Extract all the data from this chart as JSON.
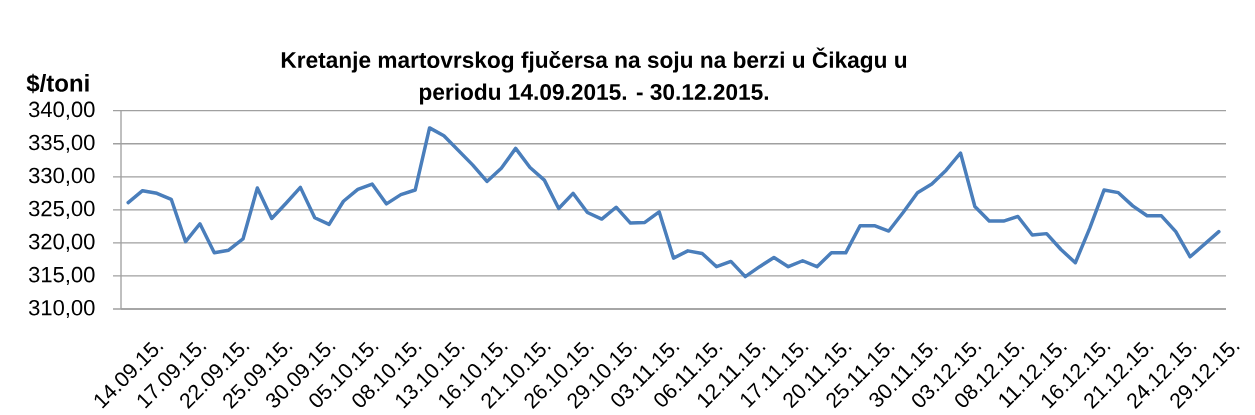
{
  "chart_data": {
    "type": "line",
    "title": "Kretanje martovrskog fjučersa na soju na berzi u Čikagu u periodu 14.09.2015. - 30.12.2015.",
    "ylabel": "$/toni",
    "categories": [
      "14.09.15.",
      null,
      null,
      "17.09.15.",
      null,
      null,
      "22.09.15.",
      null,
      null,
      "25.09.15.",
      null,
      null,
      "30.09.15.",
      null,
      null,
      "05.10.15.",
      null,
      null,
      "08.10.15.",
      null,
      null,
      "13.10.15.",
      null,
      null,
      "16.10.15.",
      null,
      null,
      "21.10.15.",
      null,
      null,
      "26.10.15.",
      null,
      null,
      "29.10.15.",
      null,
      null,
      "03.11.15.",
      null,
      null,
      "06.11.15.",
      null,
      null,
      "12.11.15.",
      null,
      null,
      "17.11.15.",
      null,
      null,
      "20.11.15.",
      null,
      null,
      "25.11.15.",
      null,
      null,
      "30.11.15.",
      null,
      null,
      "03.12.15.",
      null,
      null,
      "08.12.15.",
      null,
      null,
      "11.12.15.",
      null,
      null,
      "16.12.15.",
      null,
      null,
      "21.12.15.",
      null,
      null,
      "24.12.15.",
      null,
      null,
      "29.12.15.",
      null
    ],
    "series": [
      {
        "color": "#4a7ebb",
        "values": [
          326.1,
          327.9,
          327.5,
          326.6,
          320.2,
          322.9,
          318.5,
          318.9,
          320.6,
          328.3,
          323.7,
          326.0,
          328.4,
          323.8,
          322.8,
          326.3,
          328.1,
          328.9,
          325.9,
          327.3,
          328.0,
          337.4,
          336.2,
          334.0,
          331.8,
          329.3,
          331.3,
          334.3,
          331.4,
          329.5,
          325.2,
          327.5,
          324.6,
          323.6,
          325.4,
          323.0,
          323.1,
          324.7,
          317.7,
          318.8,
          318.4,
          316.4,
          317.2,
          314.9,
          316.4,
          317.8,
          316.4,
          317.3,
          316.4,
          318.5,
          318.5,
          322.6,
          322.6,
          321.8,
          324.6,
          327.6,
          328.9,
          331.0,
          333.6,
          325.5,
          323.3,
          323.3,
          324.0,
          321.2,
          321.4,
          319.0,
          317.0,
          322.2,
          328.0,
          327.6,
          325.6,
          324.1,
          324.1,
          321.7,
          317.9,
          319.8,
          321.7
        ]
      }
    ],
    "ylim": [
      310,
      340
    ],
    "yticks": [
      {
        "value": 310,
        "label": "310,00"
      },
      {
        "value": 315,
        "label": "315,00"
      },
      {
        "value": 320,
        "label": "320,00"
      },
      {
        "value": 325,
        "label": "325,00"
      },
      {
        "value": 330,
        "label": "330,00"
      },
      {
        "value": 335,
        "label": "335,00"
      },
      {
        "value": 340,
        "label": "340,00"
      }
    ],
    "grid": "y"
  }
}
